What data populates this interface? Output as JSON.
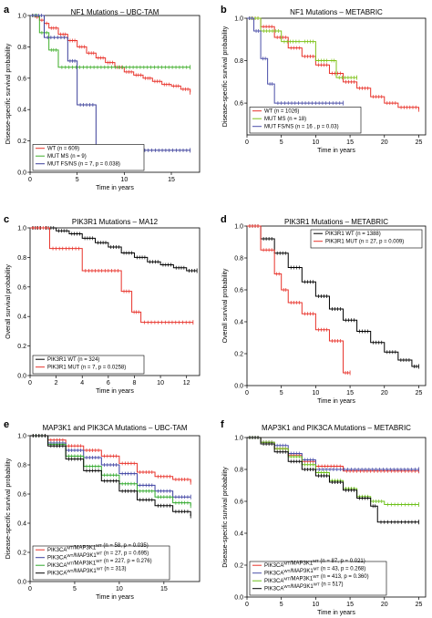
{
  "chart_data": [
    {
      "type": "line",
      "panel": "a",
      "title": "NF1 Mutations – UBC-TAM",
      "xlabel": "Time in years",
      "ylabel": "Disease-specific survival probability",
      "xlim": [
        0,
        18
      ],
      "ylim": [
        0,
        1.0
      ],
      "xticks": [
        0,
        5,
        10,
        15
      ],
      "yticks": [
        0,
        0.2,
        0.4,
        0.6,
        0.8,
        1.0
      ],
      "ytick_labels": [
        "0.0",
        "0.2",
        "0.4",
        "0.6",
        "0.8",
        "1.0"
      ],
      "legend_position": "bottom-left",
      "series": [
        {
          "name": "WT (n = 609)",
          "color": "#e8322a",
          "x": [
            0,
            0.5,
            1,
            1.5,
            2,
            3,
            4,
            5,
            6,
            7,
            8,
            9,
            10,
            11,
            12,
            13,
            14,
            15,
            16,
            17
          ],
          "y": [
            1.0,
            0.99,
            0.97,
            0.95,
            0.92,
            0.88,
            0.84,
            0.8,
            0.76,
            0.73,
            0.7,
            0.67,
            0.64,
            0.62,
            0.6,
            0.58,
            0.56,
            0.55,
            0.53,
            0.51
          ]
        },
        {
          "name": "MUT MS (n = 9)",
          "color": "#3fae2a",
          "x": [
            0,
            1,
            2,
            3,
            17
          ],
          "y": [
            1.0,
            0.89,
            0.78,
            0.67,
            0.67
          ]
        },
        {
          "name": "MUT FS/NS (n = 7, p = 0.038)",
          "color": "#3b3f9a",
          "x": [
            0,
            1.5,
            4,
            5,
            7,
            17
          ],
          "y": [
            1.0,
            0.86,
            0.71,
            0.43,
            0.14,
            0.14
          ]
        }
      ]
    },
    {
      "type": "line",
      "panel": "b",
      "title": "NF1 Mutations – METABRIC",
      "xlabel": "Time in years",
      "ylabel": "Disease-specific survival probability",
      "xlim": [
        0,
        26
      ],
      "ylim": [
        0.45,
        1.0
      ],
      "xticks": [
        0,
        5,
        10,
        15,
        20,
        25
      ],
      "yticks": [
        0.6,
        0.8,
        1.0
      ],
      "ytick_labels": [
        "0.6",
        "0.8",
        "1.0"
      ],
      "legend_position": "bottom-left",
      "series": [
        {
          "name": "WT (n = 1026)",
          "color": "#e8322a",
          "x": [
            0,
            2,
            4,
            6,
            8,
            10,
            12,
            14,
            16,
            18,
            20,
            22,
            25
          ],
          "y": [
            1.0,
            0.96,
            0.91,
            0.86,
            0.82,
            0.78,
            0.74,
            0.7,
            0.67,
            0.63,
            0.6,
            0.58,
            0.57
          ]
        },
        {
          "name": "MUT MS (n = 18)",
          "color": "#7fc21a",
          "x": [
            0,
            2,
            5,
            8,
            10,
            12,
            13,
            16
          ],
          "y": [
            1.0,
            0.94,
            0.89,
            0.89,
            0.8,
            0.8,
            0.72,
            0.72
          ]
        },
        {
          "name": "MUT FS/NS (n = 16 , p = 0.03)",
          "color": "#4a4ea8",
          "x": [
            0,
            1,
            2,
            3,
            4,
            14
          ],
          "y": [
            1.0,
            0.94,
            0.81,
            0.69,
            0.6,
            0.6
          ]
        }
      ]
    },
    {
      "type": "line",
      "panel": "c",
      "title": "PIK3R1 Mutations – MA12",
      "xlabel": "Time in years",
      "ylabel": "Overall survival probability",
      "xlim": [
        0,
        13
      ],
      "ylim": [
        0,
        1.0
      ],
      "xticks": [
        0,
        2,
        4,
        6,
        8,
        10,
        12
      ],
      "yticks": [
        0,
        0.2,
        0.4,
        0.6,
        0.8,
        1.0
      ],
      "ytick_labels": [
        "0.0",
        "0.2",
        "0.4",
        "0.6",
        "0.8",
        "1.0"
      ],
      "legend_position": "bottom-left",
      "series": [
        {
          "name": "PIK3R1 WT (n = 324)",
          "color": "#000000",
          "x": [
            0,
            1,
            2,
            3,
            4,
            5,
            6,
            7,
            8,
            9,
            10,
            11,
            12,
            12.8
          ],
          "y": [
            1.0,
            1.0,
            0.98,
            0.96,
            0.93,
            0.9,
            0.87,
            0.83,
            0.8,
            0.77,
            0.75,
            0.73,
            0.71,
            0.71
          ]
        },
        {
          "name": "PIK3R1 MUT (n = 7, p = 0.0258)",
          "color": "#e8322a",
          "x": [
            0,
            1.5,
            4,
            7,
            7.8,
            8.5,
            12.5
          ],
          "y": [
            1.0,
            0.86,
            0.71,
            0.57,
            0.43,
            0.36,
            0.36
          ]
        }
      ]
    },
    {
      "type": "line",
      "panel": "d",
      "title": "PIK3R1 Mutations – METABRIC",
      "xlabel": "Time in years",
      "ylabel": "Overall survival probability",
      "xlim": [
        0,
        26
      ],
      "ylim": [
        0,
        1.0
      ],
      "xticks": [
        0,
        5,
        10,
        15,
        20,
        25
      ],
      "yticks": [
        0,
        0.2,
        0.4,
        0.6,
        0.8,
        1.0
      ],
      "ytick_labels": [
        "0.0",
        "0.2",
        "0.4",
        "0.6",
        "0.8",
        "1.0"
      ],
      "legend_position": "top-right",
      "series": [
        {
          "name": "PIK3R1 WT (n = 1388)",
          "color": "#000000",
          "x": [
            0,
            2,
            4,
            6,
            8,
            10,
            12,
            14,
            16,
            18,
            20,
            22,
            24,
            25
          ],
          "y": [
            1.0,
            0.92,
            0.83,
            0.74,
            0.65,
            0.56,
            0.48,
            0.41,
            0.34,
            0.27,
            0.21,
            0.16,
            0.12,
            0.12
          ]
        },
        {
          "name": "PIK3R1 MUT (n = 27, p = 0.009)",
          "color": "#e8322a",
          "x": [
            0,
            2,
            4,
            5,
            6,
            8,
            10,
            12,
            14,
            15
          ],
          "y": [
            1.0,
            0.85,
            0.7,
            0.6,
            0.52,
            0.45,
            0.35,
            0.28,
            0.08,
            0.08
          ]
        }
      ]
    },
    {
      "type": "line",
      "panel": "e",
      "title": "MAP3K1 and PIK3CA Mutations – UBC-TAM",
      "xlabel": "Time in years",
      "ylabel": "Disease-specific survival probability",
      "xlim": [
        0,
        19
      ],
      "ylim": [
        0,
        1.0
      ],
      "xticks": [
        0,
        5,
        10,
        15
      ],
      "yticks": [
        0,
        0.2,
        0.4,
        0.6,
        0.8,
        1.0
      ],
      "ytick_labels": [
        "0.0",
        "0.2",
        "0.4",
        "0.6",
        "0.8",
        "1.0"
      ],
      "legend_position": "bottom-left",
      "series": [
        {
          "name": "PIK3CA^MT/MAP3K1^MT (n = 58, p = 0.035)",
          "color": "#e8322a",
          "x": [
            0,
            2,
            4,
            6,
            8,
            10,
            12,
            14,
            16,
            18
          ],
          "y": [
            1.0,
            0.97,
            0.93,
            0.9,
            0.86,
            0.81,
            0.75,
            0.72,
            0.7,
            0.68
          ]
        },
        {
          "name": "PIK3CA^WT/MAP3K1^MT (n = 27, p = 0.695)",
          "color": "#3b3fa0",
          "x": [
            0,
            2,
            4,
            6,
            8,
            10,
            12,
            14,
            16,
            18
          ],
          "y": [
            1.0,
            0.95,
            0.9,
            0.85,
            0.8,
            0.74,
            0.66,
            0.62,
            0.58,
            0.58
          ]
        },
        {
          "name": "PIK3CA^MT/MAP3K1^WT (n = 227, p = 0.276)",
          "color": "#2fa82a",
          "x": [
            0,
            2,
            4,
            6,
            8,
            10,
            12,
            14,
            16,
            18
          ],
          "y": [
            1.0,
            0.94,
            0.86,
            0.79,
            0.73,
            0.67,
            0.62,
            0.58,
            0.54,
            0.52
          ]
        },
        {
          "name": "PIK3CA^WT/MAP3K1^WT (n = 313)",
          "color": "#000000",
          "x": [
            0,
            2,
            4,
            6,
            8,
            10,
            12,
            14,
            16,
            18
          ],
          "y": [
            1.0,
            0.93,
            0.84,
            0.76,
            0.69,
            0.62,
            0.56,
            0.52,
            0.48,
            0.45
          ]
        }
      ]
    },
    {
      "type": "line",
      "panel": "f",
      "title": "MAP3K1 and PIK3CA Mutations – METABRIC",
      "xlabel": "Time in years",
      "ylabel": "Disease-specific survival probability",
      "xlim": [
        0,
        26
      ],
      "ylim": [
        0,
        1.0
      ],
      "xticks": [
        0,
        5,
        10,
        15,
        20,
        25
      ],
      "yticks": [
        0,
        0.2,
        0.4,
        0.6,
        0.8,
        1.0
      ],
      "ytick_labels": [
        "0.0",
        "0.2",
        "0.4",
        "0.6",
        "0.8",
        "1.0"
      ],
      "legend_position": "bottom-left",
      "series": [
        {
          "name": "PIK3CA^MT/MAP3K1^MT (n = 87, p = 0.021)",
          "color": "#e8322a",
          "x": [
            0,
            2,
            4,
            6,
            8,
            10,
            14,
            25
          ],
          "y": [
            1.0,
            0.97,
            0.93,
            0.89,
            0.85,
            0.82,
            0.79,
            0.79
          ]
        },
        {
          "name": "PIK3CA^WT/MAP3K1^MT (n = 43, p = 0.268)",
          "color": "#4a4ea8",
          "x": [
            0,
            2,
            4,
            6,
            8,
            10,
            25
          ],
          "y": [
            1.0,
            0.97,
            0.95,
            0.9,
            0.86,
            0.8,
            0.8
          ]
        },
        {
          "name": "PIK3CA^MT/MAP3K1^WT (n = 413, p = 0.360)",
          "color": "#6cc01a",
          "x": [
            0,
            2,
            4,
            6,
            8,
            10,
            12,
            14,
            16,
            18,
            20,
            25
          ],
          "y": [
            1.0,
            0.97,
            0.93,
            0.88,
            0.83,
            0.78,
            0.73,
            0.68,
            0.63,
            0.6,
            0.58,
            0.58
          ]
        },
        {
          "name": "PIK3CA^WT/MAP3K1^WT (n = 517)",
          "color": "#000000",
          "x": [
            0,
            2,
            4,
            6,
            8,
            10,
            12,
            14,
            16,
            18,
            19,
            25
          ],
          "y": [
            1.0,
            0.96,
            0.91,
            0.85,
            0.8,
            0.76,
            0.72,
            0.67,
            0.62,
            0.57,
            0.47,
            0.47
          ]
        }
      ]
    }
  ],
  "panels": [
    {
      "letter": "a",
      "title": "NF1 Mutations – UBC-TAM",
      "xlabel": "Time in years",
      "ylabel": "Disease-specific survival probability"
    },
    {
      "letter": "b",
      "title": "NF1 Mutations – METABRIC",
      "xlabel": "Time in years",
      "ylabel": "Disease-specific survival probability"
    },
    {
      "letter": "c",
      "title": "PIK3R1 Mutations – MA12",
      "xlabel": "Time in years",
      "ylabel": "Overall survival probability"
    },
    {
      "letter": "d",
      "title": "PIK3R1 Mutations – METABRIC",
      "xlabel": "Time in years",
      "ylabel": "Overall survival probability"
    },
    {
      "letter": "e",
      "title": "MAP3K1 and PIK3CA Mutations – UBC-TAM",
      "xlabel": "Time in years",
      "ylabel": "Disease-specific survival probability"
    },
    {
      "letter": "f",
      "title": "MAP3K1 and PIK3CA Mutations – METABRIC",
      "xlabel": "Time in years",
      "ylabel": "Disease-specific survival probability"
    }
  ]
}
